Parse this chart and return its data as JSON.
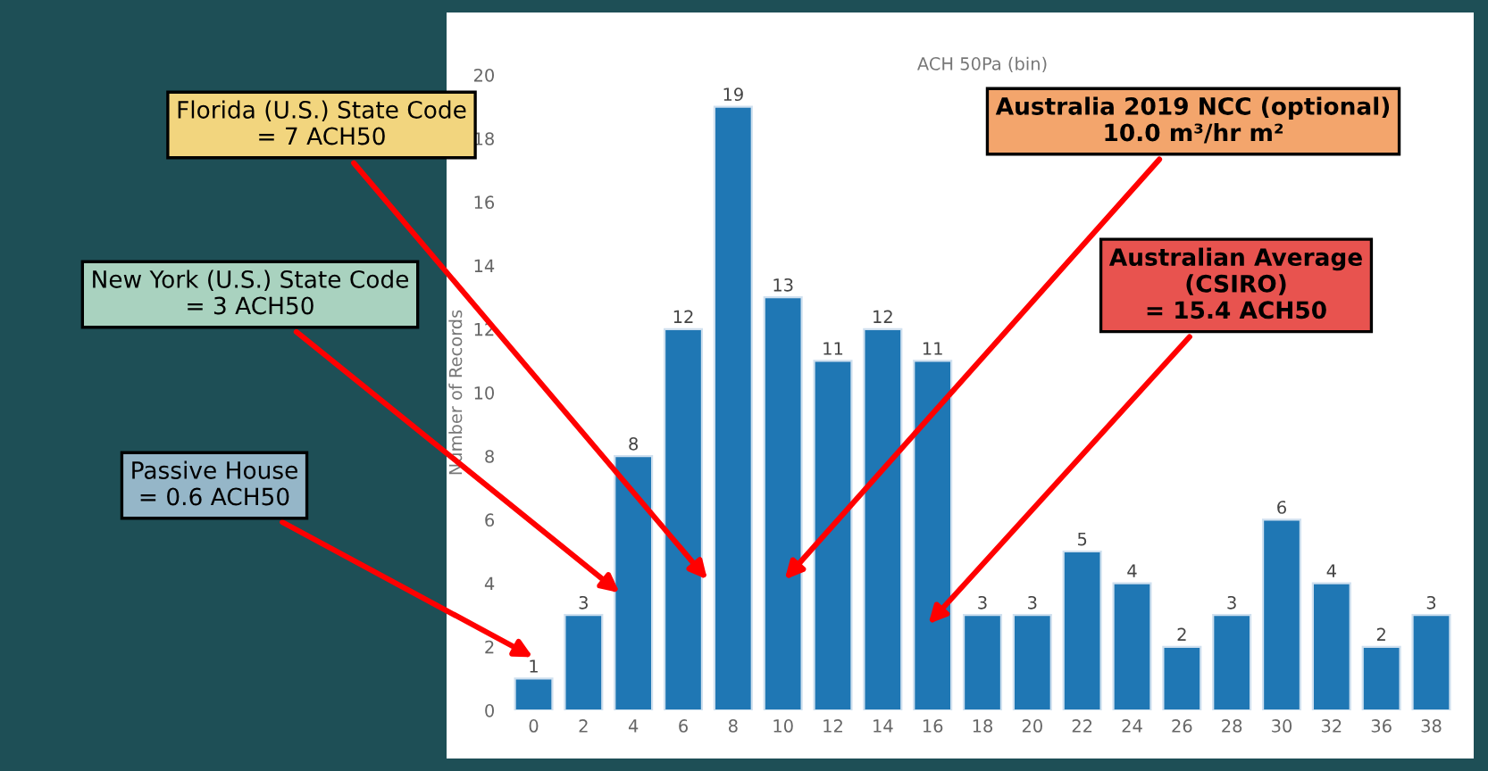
{
  "chart_data": {
    "type": "bar",
    "title": "ACH 50Pa (bin)",
    "ylabel": "Number of Records",
    "categories": [
      "0",
      "2",
      "4",
      "6",
      "8",
      "10",
      "12",
      "14",
      "16",
      "18",
      "20",
      "22",
      "24",
      "26",
      "28",
      "30",
      "32",
      "36",
      "38"
    ],
    "values": [
      1,
      3,
      8,
      12,
      19,
      13,
      11,
      12,
      11,
      3,
      3,
      5,
      4,
      2,
      3,
      6,
      4,
      2,
      3
    ],
    "color": "#1f77b4",
    "data_labels": true,
    "grid": false,
    "legend": false,
    "ylim": [
      0,
      20
    ],
    "yticks": [
      0,
      2,
      4,
      6,
      8,
      10,
      12,
      14,
      16,
      18,
      20
    ],
    "annotations": [
      "Florida (U.S.) State Code\n= 7 ACH50",
      "New York (U.S.) State Code\n= 3 ACH50",
      "Passive House\n= 0.6 ACH50",
      "Australia 2019 NCC (optional)\n10.0 m³/hr m²",
      "Australian Average\n(CSIRO)\n= 15.4 ACH50"
    ]
  }
}
